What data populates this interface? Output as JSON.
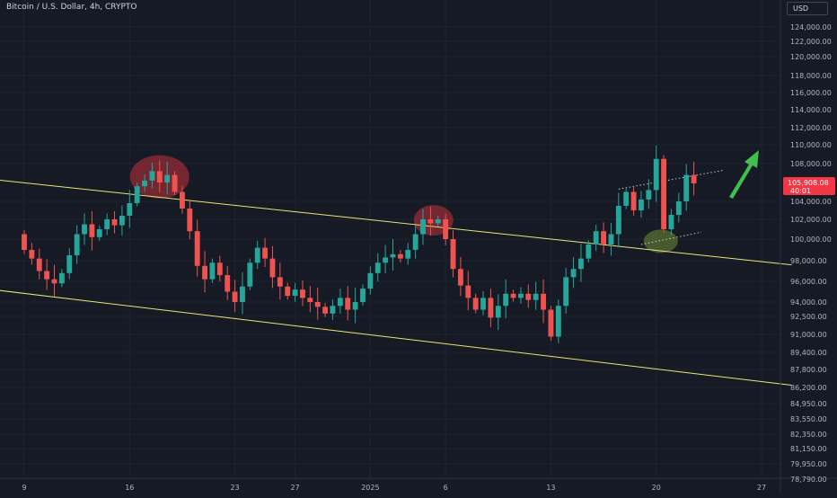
{
  "header": {
    "symbol_title": "Bitcoin / U.S. Dollar, 4h, CRYPTO",
    "currency_label": "USD"
  },
  "colors": {
    "background": "#161a25",
    "grid": "#1f2330",
    "axis_text": "#b2b5be",
    "candle_up": "#26a69a",
    "candle_down": "#ef5350",
    "channel_line": "#e6e67a",
    "price_label_bg": "#f23645",
    "arrow": "#3fbf4f",
    "highlight_red": "#c2313c",
    "highlight_green": "#6f8f36",
    "dotted_line": "#c8c8c8"
  },
  "chart_data": {
    "type": "candlestick",
    "title": "Bitcoin / U.S. Dollar, 4h, CRYPTO",
    "y_tick_labels": [
      "124,000.00",
      "122,000.00",
      "120,000.00",
      "118,000.00",
      "116,000.00",
      "114,000.00",
      "112,000.00",
      "110,000.00",
      "108,000.00",
      "104,000.00",
      "102,000.00",
      "100,000.00",
      "98,000.00",
      "96,000.00",
      "94,000.00",
      "92,500.00",
      "91,000.00",
      "89,400.00",
      "87,800.00",
      "86,200.00",
      "84,950.00",
      "83,550.00",
      "82,350.00",
      "81,150.00",
      "79,950.00",
      "78,790.00"
    ],
    "y_tick_values": [
      124000,
      122000,
      120000,
      118000,
      116000,
      114000,
      112000,
      110000,
      108000,
      104000,
      102000,
      100000,
      98000,
      96000,
      94000,
      92500,
      91000,
      89400,
      87800,
      86200,
      84950,
      83550,
      82350,
      81150,
      79950,
      78790
    ],
    "x_tick_labels": [
      "9",
      "16",
      "23",
      "27",
      "2025",
      "6",
      "13",
      "20",
      "27"
    ],
    "x_tick_days": [
      9,
      16,
      23,
      27,
      32,
      37,
      44,
      51,
      58
    ],
    "x_axis_note": "days counted from Dec 1, 2024",
    "last_price": {
      "value": "105,908.08",
      "countdown": "40:01"
    },
    "candles": [
      {
        "d": 9.0,
        "o": 100500,
        "c": 99000
      },
      {
        "d": 9.5,
        "o": 99000,
        "c": 98200
      },
      {
        "d": 10.0,
        "o": 98200,
        "c": 97000
      },
      {
        "d": 10.5,
        "o": 97000,
        "c": 96200
      },
      {
        "d": 11.0,
        "o": 96200,
        "c": 95800
      },
      {
        "d": 11.5,
        "o": 95800,
        "c": 96800
      },
      {
        "d": 12.0,
        "o": 96800,
        "c": 98500
      },
      {
        "d": 12.5,
        "o": 98500,
        "c": 100500
      },
      {
        "d": 13.0,
        "o": 100500,
        "c": 101500
      },
      {
        "d": 13.5,
        "o": 101500,
        "c": 100200
      },
      {
        "d": 14.0,
        "o": 100200,
        "c": 101000
      },
      {
        "d": 14.5,
        "o": 101000,
        "c": 102000
      },
      {
        "d": 15.0,
        "o": 102000,
        "c": 101400
      },
      {
        "d": 15.5,
        "o": 101400,
        "c": 102400
      },
      {
        "d": 16.0,
        "o": 102400,
        "c": 103800
      },
      {
        "d": 16.5,
        "o": 103800,
        "c": 105600
      },
      {
        "d": 17.0,
        "o": 105600,
        "c": 106200
      },
      {
        "d": 17.5,
        "o": 106200,
        "c": 107200
      },
      {
        "d": 18.0,
        "o": 107200,
        "c": 106000
      },
      {
        "d": 18.5,
        "o": 106000,
        "c": 106800
      },
      {
        "d": 19.0,
        "o": 106800,
        "c": 105000
      },
      {
        "d": 19.5,
        "o": 105000,
        "c": 103200
      },
      {
        "d": 20.0,
        "o": 103200,
        "c": 100800
      },
      {
        "d": 20.5,
        "o": 100800,
        "c": 97500
      },
      {
        "d": 21.0,
        "o": 97500,
        "c": 96200
      },
      {
        "d": 21.5,
        "o": 96200,
        "c": 97800
      },
      {
        "d": 22.0,
        "o": 97800,
        "c": 96600
      },
      {
        "d": 22.5,
        "o": 96600,
        "c": 95000
      },
      {
        "d": 23.0,
        "o": 95000,
        "c": 94000
      },
      {
        "d": 23.5,
        "o": 94000,
        "c": 95500
      },
      {
        "d": 24.0,
        "o": 95500,
        "c": 97800
      },
      {
        "d": 24.5,
        "o": 97800,
        "c": 99200
      },
      {
        "d": 25.0,
        "o": 99200,
        "c": 98200
      },
      {
        "d": 25.5,
        "o": 98200,
        "c": 96400
      },
      {
        "d": 26.0,
        "o": 96400,
        "c": 95500
      },
      {
        "d": 26.5,
        "o": 95500,
        "c": 94600
      },
      {
        "d": 27.0,
        "o": 94600,
        "c": 95200
      },
      {
        "d": 27.5,
        "o": 95200,
        "c": 94400
      },
      {
        "d": 28.0,
        "o": 94400,
        "c": 94000
      },
      {
        "d": 28.5,
        "o": 94000,
        "c": 93500
      },
      {
        "d": 29.0,
        "o": 93500,
        "c": 92800
      },
      {
        "d": 29.5,
        "o": 92800,
        "c": 93600
      },
      {
        "d": 30.0,
        "o": 93600,
        "c": 94400
      },
      {
        "d": 30.5,
        "o": 94400,
        "c": 93200
      },
      {
        "d": 31.0,
        "o": 93200,
        "c": 94000
      },
      {
        "d": 31.5,
        "o": 94000,
        "c": 95300
      },
      {
        "d": 32.0,
        "o": 95300,
        "c": 96800
      },
      {
        "d": 32.5,
        "o": 96800,
        "c": 97800
      },
      {
        "d": 33.0,
        "o": 97800,
        "c": 98300
      },
      {
        "d": 33.5,
        "o": 98300,
        "c": 98600
      },
      {
        "d": 34.0,
        "o": 98600,
        "c": 98200
      },
      {
        "d": 34.5,
        "o": 98200,
        "c": 99000
      },
      {
        "d": 35.0,
        "o": 99000,
        "c": 100500
      },
      {
        "d": 35.5,
        "o": 100500,
        "c": 102000
      },
      {
        "d": 36.0,
        "o": 102000,
        "c": 101600
      },
      {
        "d": 36.5,
        "o": 101600,
        "c": 102000
      },
      {
        "d": 37.0,
        "o": 102000,
        "c": 100000
      },
      {
        "d": 37.5,
        "o": 100000,
        "c": 97200
      },
      {
        "d": 38.0,
        "o": 97200,
        "c": 95600
      },
      {
        "d": 38.5,
        "o": 95600,
        "c": 94400
      },
      {
        "d": 39.0,
        "o": 94400,
        "c": 93200
      },
      {
        "d": 39.5,
        "o": 93200,
        "c": 94400
      },
      {
        "d": 40.0,
        "o": 94400,
        "c": 92400
      },
      {
        "d": 40.5,
        "o": 92400,
        "c": 93600
      },
      {
        "d": 41.0,
        "o": 93600,
        "c": 94800
      },
      {
        "d": 41.5,
        "o": 94800,
        "c": 94400
      },
      {
        "d": 42.0,
        "o": 94400,
        "c": 94800
      },
      {
        "d": 42.5,
        "o": 94800,
        "c": 94200
      },
      {
        "d": 43.0,
        "o": 94200,
        "c": 94800
      },
      {
        "d": 43.5,
        "o": 94800,
        "c": 93200
      },
      {
        "d": 44.0,
        "o": 93200,
        "c": 90800
      },
      {
        "d": 44.5,
        "o": 90800,
        "c": 93600
      },
      {
        "d": 45.0,
        "o": 93600,
        "c": 96400
      },
      {
        "d": 45.5,
        "o": 96400,
        "c": 97200
      },
      {
        "d": 46.0,
        "o": 97200,
        "c": 98200
      },
      {
        "d": 46.5,
        "o": 98200,
        "c": 99500
      },
      {
        "d": 47.0,
        "o": 99500,
        "c": 100800
      },
      {
        "d": 47.5,
        "o": 100800,
        "c": 99500
      },
      {
        "d": 48.0,
        "o": 99500,
        "c": 100500
      },
      {
        "d": 48.5,
        "o": 100500,
        "c": 103500
      },
      {
        "d": 49.0,
        "o": 103500,
        "c": 105000
      },
      {
        "d": 49.5,
        "o": 105000,
        "c": 103000
      },
      {
        "d": 50.0,
        "o": 103000,
        "c": 104200
      },
      {
        "d": 50.5,
        "o": 104200,
        "c": 105200
      },
      {
        "d": 51.0,
        "o": 105200,
        "c": 108500
      },
      {
        "d": 51.5,
        "o": 108500,
        "c": 101000
      },
      {
        "d": 52.0,
        "o": 101000,
        "c": 102500
      },
      {
        "d": 52.5,
        "o": 102500,
        "c": 104000
      },
      {
        "d": 53.0,
        "o": 104000,
        "c": 106800
      },
      {
        "d": 53.5,
        "o": 106800,
        "c": 105908
      }
    ],
    "channel_lines": [
      {
        "d1": 0,
        "p1": 107500,
        "d2": 60,
        "p2": 97600
      },
      {
        "d1": 0,
        "p1": 96400,
        "d2": 60,
        "p2": 86400
      }
    ],
    "dotted_lines": [
      {
        "d1": 48.5,
        "p1": 105300,
        "d2": 55.5,
        "p2": 107300
      },
      {
        "d1": 50,
        "p1": 99500,
        "d2": 54,
        "p2": 100700
      }
    ],
    "highlights": [
      {
        "d": 18.0,
        "p": 106600,
        "color": "red"
      },
      {
        "d": 36.2,
        "p": 101900,
        "color": "red"
      },
      {
        "d": 51.3,
        "p": 99800,
        "color": "green"
      }
    ]
  }
}
